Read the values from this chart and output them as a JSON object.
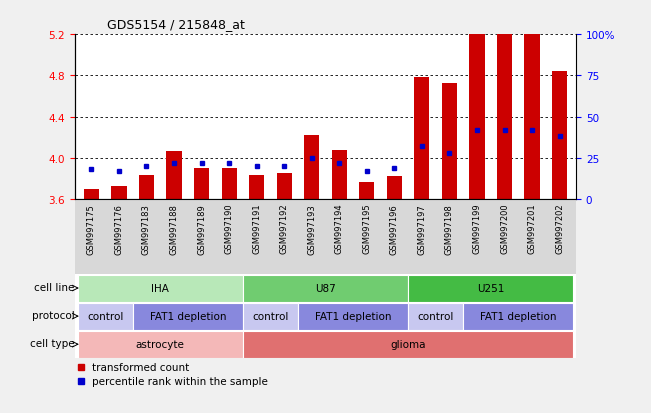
{
  "title": "GDS5154 / 215848_at",
  "samples": [
    "GSM997175",
    "GSM997176",
    "GSM997183",
    "GSM997188",
    "GSM997189",
    "GSM997190",
    "GSM997191",
    "GSM997192",
    "GSM997193",
    "GSM997194",
    "GSM997195",
    "GSM997196",
    "GSM997197",
    "GSM997198",
    "GSM997199",
    "GSM997200",
    "GSM997201",
    "GSM997202"
  ],
  "transformed_count": [
    3.7,
    3.73,
    3.83,
    4.07,
    3.9,
    3.9,
    3.83,
    3.85,
    4.22,
    4.08,
    3.77,
    3.82,
    4.78,
    4.73,
    5.27,
    5.24,
    5.26,
    4.84
  ],
  "percentile_rank": [
    18,
    17,
    20,
    22,
    22,
    22,
    20,
    20,
    25,
    22,
    17,
    19,
    32,
    28,
    42,
    42,
    42,
    38
  ],
  "ylim_left": [
    3.6,
    5.2
  ],
  "ylim_right": [
    0,
    100
  ],
  "yticks_left": [
    3.6,
    4.0,
    4.4,
    4.8,
    5.2
  ],
  "yticks_right": [
    0,
    25,
    50,
    75,
    100
  ],
  "bar_color": "#cc0000",
  "percentile_color": "#0000cc",
  "fig_bg_color": "#f0f0f0",
  "plot_bg_color": "#ffffff",
  "xtick_bg_color": "#d8d8d8",
  "cell_line_groups": [
    {
      "label": "IHA",
      "start": 0,
      "end": 6,
      "color": "#b8e8b8"
    },
    {
      "label": "U87",
      "start": 6,
      "end": 12,
      "color": "#70cc70"
    },
    {
      "label": "U251",
      "start": 12,
      "end": 18,
      "color": "#44bb44"
    }
  ],
  "protocol_groups": [
    {
      "label": "control",
      "start": 0,
      "end": 2,
      "color": "#c8c8f0"
    },
    {
      "label": "FAT1 depletion",
      "start": 2,
      "end": 6,
      "color": "#8888dd"
    },
    {
      "label": "control",
      "start": 6,
      "end": 8,
      "color": "#c8c8f0"
    },
    {
      "label": "FAT1 depletion",
      "start": 8,
      "end": 12,
      "color": "#8888dd"
    },
    {
      "label": "control",
      "start": 12,
      "end": 14,
      "color": "#c8c8f0"
    },
    {
      "label": "FAT1 depletion",
      "start": 14,
      "end": 18,
      "color": "#8888dd"
    }
  ],
  "cell_type_groups": [
    {
      "label": "astrocyte",
      "start": 0,
      "end": 6,
      "color": "#f4b8b8"
    },
    {
      "label": "glioma",
      "start": 6,
      "end": 18,
      "color": "#e07070"
    }
  ],
  "row_labels": [
    "cell line",
    "protocol",
    "cell type"
  ],
  "legend_items": [
    {
      "label": "transformed count",
      "color": "#cc0000"
    },
    {
      "label": "percentile rank within the sample",
      "color": "#0000cc"
    }
  ]
}
